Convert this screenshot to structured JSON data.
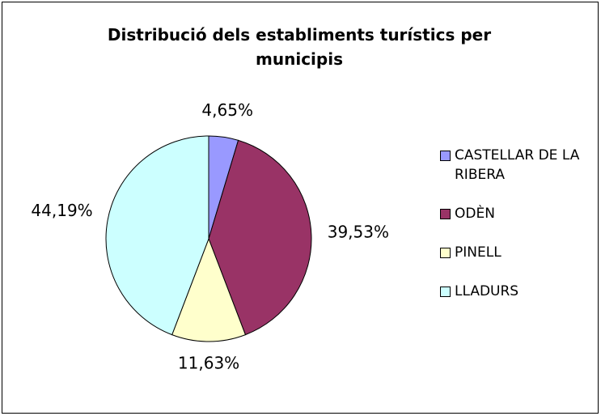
{
  "chart_data": {
    "type": "pie",
    "title": "Distribució dels establiments turístics per municipis",
    "categories": [
      "CASTELLAR DE LA RIBERA",
      "ODÈN",
      "PINELL",
      "LLADURS"
    ],
    "values": [
      4.65,
      39.53,
      11.63,
      44.19
    ],
    "value_labels": [
      "4,65%",
      "39,53%",
      "11,63%",
      "44,19%"
    ],
    "colors": [
      "#9999ff",
      "#993366",
      "#ffffcc",
      "#ccffff"
    ],
    "legend": "right"
  }
}
